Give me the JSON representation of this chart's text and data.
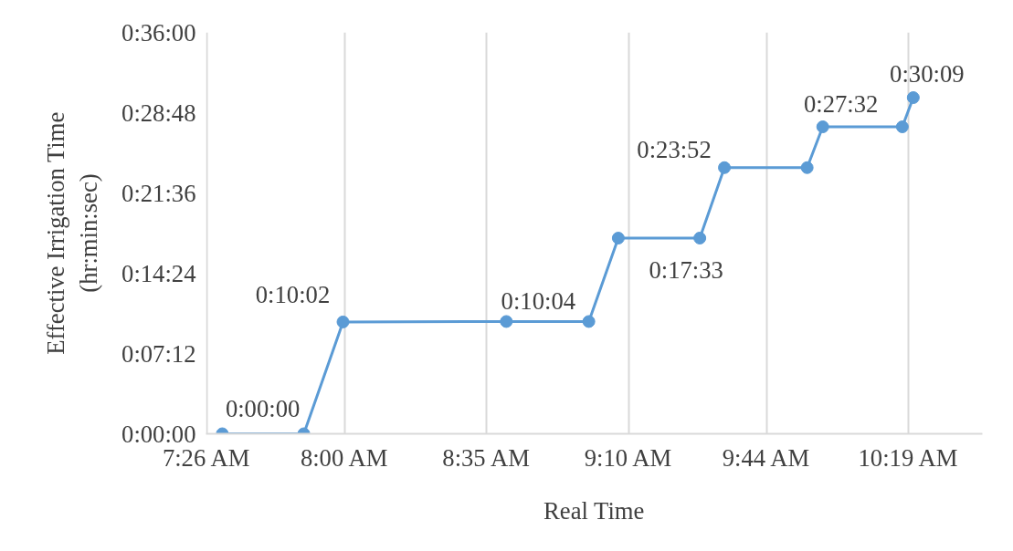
{
  "chart_data": {
    "type": "line",
    "xlabel": "Real Time",
    "ylabel": "Effective Irrigation Time\n(hr:min:sec)",
    "x": [
      7.497,
      7.832,
      7.993,
      8.664,
      9.003,
      9.124,
      9.459,
      9.56,
      9.9,
      9.964,
      10.291,
      10.336
    ],
    "series": [
      {
        "color": "#5b9bd5",
        "values": [
          0,
          0,
          10.03,
          10.07,
          10.07,
          17.55,
          17.55,
          23.87,
          23.87,
          27.53,
          27.53,
          30.15
        ],
        "value_labels": [
          null,
          "0:00:00",
          "0:10:02",
          "0:10:04",
          null,
          null,
          "0:17:33",
          "0:23:52",
          null,
          "0:27:32",
          null,
          "0:30:09"
        ]
      }
    ],
    "xlim": [
      7.43,
      10.62
    ],
    "xticks": [
      {
        "value": 7.4333,
        "label": "7:26 AM"
      },
      {
        "value": 8.0,
        "label": "8:00 AM"
      },
      {
        "value": 8.5833,
        "label": "8:35 AM"
      },
      {
        "value": 9.1667,
        "label": "9:10 AM"
      },
      {
        "value": 9.7333,
        "label": "9:44 AM"
      },
      {
        "value": 10.3167,
        "label": "10:19 AM"
      }
    ],
    "ylim": [
      0,
      36
    ],
    "yticks": [
      {
        "value": 0,
        "label": "0:00:00"
      },
      {
        "value": 7.2,
        "label": "0:07:12"
      },
      {
        "value": 14.4,
        "label": "0:14:24"
      },
      {
        "value": 21.6,
        "label": "0:21:36"
      },
      {
        "value": 28.8,
        "label": "0:28:48"
      },
      {
        "value": 36,
        "label": "0:36:00"
      }
    ],
    "grid": "x",
    "marker": "circle",
    "line_style": "solid"
  }
}
